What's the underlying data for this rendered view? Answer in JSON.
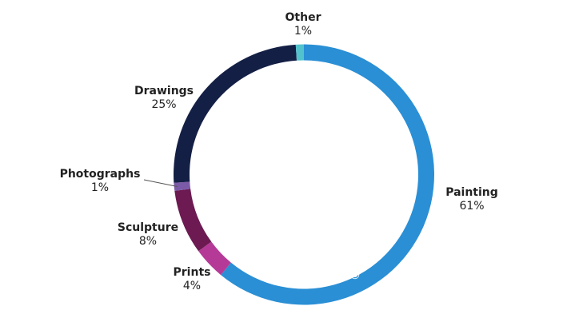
{
  "chart_data": {
    "type": "donut",
    "categories": [
      "Painting",
      "Prints",
      "Sculpture",
      "Photographs",
      "Drawings",
      "Other"
    ],
    "values": [
      61,
      4,
      8,
      1,
      25,
      1
    ],
    "value_labels": [
      "61%",
      "4%",
      "8%",
      "1%",
      "25%",
      "1%"
    ],
    "colors": [
      "#2a8fd5",
      "#b53a97",
      "#6c1a51",
      "#7b5aa8",
      "#141f45",
      "#52c2cc"
    ],
    "watermark": "©artprice.com"
  }
}
